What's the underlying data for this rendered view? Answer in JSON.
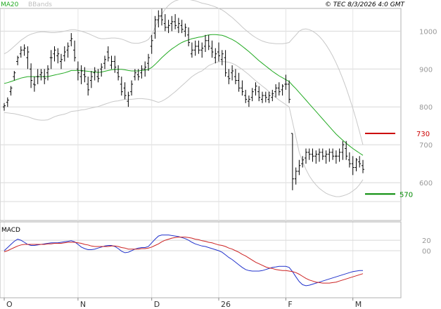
{
  "header": {
    "ma_label": "MA20",
    "bbands_label": "BBands",
    "copyright": "© TEC 8/3/2026 4:0 GMT"
  },
  "macd_label": "MACD",
  "colors": {
    "ma20": "#22aa22",
    "bbands": "#c8c8c8",
    "candles": "#000000",
    "macd_line": "#2233cc",
    "signal_line": "#cc2222",
    "resistance": "#cc0000",
    "support": "#008800",
    "grid": "#d8d8d8",
    "axis_text": "#999999"
  },
  "chart_data": [
    {
      "type": "candlestick",
      "title": "",
      "y_ticks": [
        "1000",
        "900",
        "800",
        "700",
        "600"
      ],
      "ylim": [
        500,
        1060
      ],
      "x_ticks": [
        "O",
        "N",
        "D",
        "26",
        "F",
        "M"
      ],
      "x_tick_index": [
        0,
        22,
        44,
        64,
        84,
        104
      ],
      "ohlc": [
        [
          800,
          810,
          790,
          803
        ],
        [
          812,
          825,
          800,
          818
        ],
        [
          840,
          855,
          830,
          850
        ],
        [
          880,
          895,
          870,
          890
        ],
        [
          920,
          935,
          910,
          930
        ],
        [
          940,
          960,
          930,
          950
        ],
        [
          950,
          965,
          935,
          955
        ],
        [
          930,
          960,
          900,
          945
        ],
        [
          900,
          915,
          850,
          870
        ],
        [
          860,
          880,
          840,
          858
        ],
        [
          880,
          900,
          860,
          880
        ],
        [
          885,
          900,
          870,
          890
        ],
        [
          880,
          900,
          860,
          875
        ],
        [
          890,
          910,
          870,
          900
        ],
        [
          930,
          950,
          900,
          930
        ],
        [
          940,
          960,
          920,
          950
        ],
        [
          935,
          955,
          915,
          940
        ],
        [
          920,
          940,
          900,
          925
        ],
        [
          935,
          960,
          920,
          945
        ],
        [
          950,
          970,
          930,
          960
        ],
        [
          975,
          995,
          960,
          980
        ],
        [
          950,
          975,
          920,
          930
        ],
        [
          900,
          920,
          870,
          890
        ],
        [
          880,
          910,
          860,
          895
        ],
        [
          885,
          905,
          865,
          880
        ],
        [
          860,
          880,
          830,
          845
        ],
        [
          870,
          895,
          850,
          880
        ],
        [
          890,
          905,
          870,
          895
        ],
        [
          880,
          900,
          865,
          875
        ],
        [
          900,
          915,
          880,
          905
        ],
        [
          915,
          935,
          900,
          925
        ],
        [
          945,
          960,
          920,
          930
        ],
        [
          910,
          935,
          900,
          920
        ],
        [
          920,
          935,
          890,
          905
        ],
        [
          890,
          910,
          870,
          880
        ],
        [
          860,
          880,
          830,
          840
        ],
        [
          850,
          865,
          820,
          830
        ],
        [
          815,
          840,
          800,
          830
        ],
        [
          840,
          870,
          830,
          860
        ],
        [
          880,
          900,
          870,
          890
        ],
        [
          885,
          900,
          870,
          880
        ],
        [
          890,
          910,
          875,
          900
        ],
        [
          900,
          920,
          880,
          905
        ],
        [
          915,
          940,
          895,
          930
        ],
        [
          960,
          990,
          940,
          975
        ],
        [
          995,
          1040,
          980,
          1030
        ],
        [
          1030,
          1055,
          1010,
          1040
        ],
        [
          1040,
          1060,
          1015,
          1030
        ],
        [
          1020,
          1045,
          1000,
          1010
        ],
        [
          1010,
          1030,
          995,
          1015
        ],
        [
          1020,
          1040,
          1000,
          1025
        ],
        [
          1025,
          1045,
          1005,
          1015
        ],
        [
          1010,
          1035,
          995,
          1020
        ],
        [
          1015,
          1030,
          995,
          1005
        ],
        [
          1000,
          1020,
          985,
          1010
        ],
        [
          990,
          1010,
          960,
          970
        ],
        [
          940,
          970,
          930,
          950
        ],
        [
          950,
          975,
          935,
          960
        ],
        [
          960,
          975,
          940,
          950
        ],
        [
          950,
          970,
          930,
          955
        ],
        [
          960,
          990,
          945,
          975
        ],
        [
          975,
          990,
          950,
          960
        ],
        [
          955,
          975,
          930,
          945
        ],
        [
          930,
          955,
          915,
          940
        ],
        [
          945,
          970,
          920,
          935
        ],
        [
          925,
          950,
          910,
          940
        ],
        [
          930,
          950,
          880,
          890
        ],
        [
          880,
          900,
          860,
          875
        ],
        [
          890,
          910,
          870,
          895
        ],
        [
          880,
          900,
          860,
          870
        ],
        [
          870,
          890,
          840,
          850
        ],
        [
          850,
          870,
          830,
          840
        ],
        [
          830,
          845,
          810,
          820
        ],
        [
          815,
          830,
          800,
          820
        ],
        [
          825,
          850,
          815,
          840
        ],
        [
          845,
          865,
          830,
          855
        ],
        [
          840,
          855,
          815,
          825
        ],
        [
          820,
          840,
          810,
          830
        ],
        [
          830,
          840,
          812,
          825
        ],
        [
          820,
          840,
          810,
          830
        ],
        [
          825,
          845,
          815,
          835
        ],
        [
          840,
          860,
          825,
          850
        ],
        [
          850,
          865,
          830,
          840
        ],
        [
          845,
          860,
          830,
          855
        ],
        [
          860,
          885,
          845,
          860
        ],
        [
          860,
          870,
          810,
          820
        ],
        [
          730,
          730,
          580,
          610
        ],
        [
          610,
          640,
          595,
          630
        ],
        [
          630,
          660,
          620,
          645
        ],
        [
          650,
          670,
          640,
          660
        ],
        [
          665,
          690,
          650,
          680
        ],
        [
          680,
          690,
          660,
          675
        ],
        [
          675,
          690,
          655,
          670
        ],
        [
          670,
          685,
          650,
          675
        ],
        [
          675,
          690,
          655,
          680
        ],
        [
          680,
          690,
          660,
          670
        ],
        [
          670,
          685,
          650,
          675
        ],
        [
          675,
          690,
          655,
          680
        ],
        [
          680,
          690,
          660,
          670
        ],
        [
          670,
          685,
          650,
          670
        ],
        [
          670,
          690,
          655,
          680
        ],
        [
          680,
          710,
          660,
          700
        ],
        [
          690,
          710,
          660,
          670
        ],
        [
          660,
          680,
          640,
          650
        ],
        [
          650,
          670,
          620,
          640
        ],
        [
          640,
          665,
          630,
          660
        ],
        [
          655,
          670,
          640,
          650
        ],
        [
          645,
          660,
          625,
          635
        ]
      ],
      "ma20": [
        862,
        864,
        867,
        870,
        873,
        876,
        878,
        880,
        880,
        880,
        880,
        880,
        880,
        880,
        882,
        884,
        886,
        888,
        890,
        893,
        896,
        896,
        896,
        896,
        895,
        894,
        893,
        892,
        891,
        892,
        894,
        896,
        898,
        899,
        899,
        899,
        898,
        896,
        895,
        895,
        895,
        896,
        897,
        899,
        904,
        912,
        921,
        930,
        938,
        946,
        953,
        959,
        965,
        970,
        974,
        977,
        980,
        982,
        984,
        985,
        988,
        990,
        991,
        991,
        990,
        989,
        986,
        982,
        978,
        973,
        967,
        960,
        953,
        946,
        938,
        930,
        922,
        915,
        908,
        901,
        894,
        888,
        882,
        877,
        872,
        867,
        857,
        848,
        838,
        828,
        818,
        808,
        798,
        788,
        778,
        768,
        758,
        748,
        738,
        728,
        720,
        712,
        704,
        697,
        690,
        684,
        678,
        672
      ],
      "bb_upper": [
        940,
        945,
        952,
        960,
        968,
        976,
        982,
        988,
        992,
        995,
        997,
        998,
        998,
        997,
        996,
        996,
        997,
        998,
        1000,
        1002,
        1004,
        1004,
        1002,
        1000,
        997,
        994,
        990,
        986,
        982,
        980,
        980,
        981,
        982,
        982,
        981,
        979,
        976,
        972,
        969,
        968,
        968,
        970,
        973,
        978,
        990,
        1010,
        1030,
        1045,
        1058,
        1068,
        1075,
        1080,
        1083,
        1085,
        1085,
        1084,
        1082,
        1080,
        1077,
        1074,
        1072,
        1070,
        1067,
        1064,
        1060,
        1056,
        1050,
        1043,
        1036,
        1028,
        1020,
        1011,
        1003,
        996,
        989,
        983,
        978,
        974,
        971,
        969,
        968,
        967,
        967,
        967,
        968,
        970,
        980,
        990,
        1000,
        1005,
        1006,
        1004,
        1000,
        994,
        986,
        976,
        964,
        950,
        934,
        916,
        896,
        874,
        850,
        824,
        796,
        766,
        734,
        700
      ],
      "bb_lower": [
        785,
        784,
        783,
        782,
        780,
        778,
        776,
        774,
        771,
        768,
        766,
        765,
        765,
        766,
        770,
        774,
        777,
        779,
        781,
        784,
        788,
        789,
        790,
        792,
        793,
        795,
        797,
        799,
        801,
        804,
        807,
        810,
        813,
        815,
        816,
        818,
        820,
        820,
        820,
        821,
        822,
        822,
        821,
        820,
        818,
        815,
        812,
        815,
        820,
        826,
        833,
        840,
        848,
        856,
        864,
        872,
        880,
        886,
        891,
        895,
        902,
        909,
        913,
        917,
        919,
        920,
        919,
        918,
        915,
        911,
        905,
        899,
        892,
        885,
        877,
        869,
        862,
        855,
        848,
        840,
        832,
        825,
        818,
        812,
        806,
        800,
        760,
        720,
        680,
        655,
        635,
        618,
        605,
        594,
        585,
        578,
        572,
        568,
        565,
        563,
        563,
        565,
        568,
        572,
        578,
        585,
        595,
        608
      ],
      "resistance": {
        "value": 730,
        "label": "730"
      },
      "support": {
        "value": 570,
        "label": "570"
      }
    },
    {
      "type": "line",
      "title": "MACD",
      "y_ticks": [
        "20",
        "00"
      ],
      "y_tick_values": [
        20,
        0
      ],
      "ylim": [
        -90,
        55
      ],
      "series": [
        {
          "values": [
            0,
            6,
            12,
            18,
            22,
            20,
            16,
            12,
            10,
            10,
            11,
            12,
            13,
            14,
            15,
            15,
            15,
            16,
            17,
            18,
            19,
            17,
            12,
            7,
            4,
            2,
            2,
            3,
            5,
            7,
            9,
            10,
            10,
            8,
            4,
            -1,
            -4,
            -3,
            0,
            3,
            5,
            6,
            6,
            8,
            15,
            22,
            28,
            30,
            30,
            30,
            29,
            28,
            27,
            25,
            23,
            20,
            16,
            13,
            11,
            9,
            8,
            6,
            4,
            2,
            0,
            -3,
            -8,
            -13,
            -17,
            -22,
            -27,
            -32,
            -36,
            -38,
            -39,
            -39,
            -39,
            -38,
            -36,
            -34,
            -32,
            -31,
            -30,
            -30,
            -30,
            -32,
            -40,
            -50,
            -59,
            -65,
            -67,
            -66,
            -64,
            -62,
            -60,
            -58,
            -56,
            -54,
            -52,
            -50,
            -48,
            -46,
            -44,
            -42,
            -40,
            -39,
            -38,
            -38
          ]
        },
        {
          "values": [
            -2,
            0,
            3,
            6,
            9,
            11,
            12,
            12,
            12,
            12,
            12,
            12,
            12,
            13,
            13,
            14,
            14,
            14,
            15,
            16,
            16,
            16,
            15,
            14,
            12,
            11,
            9,
            8,
            8,
            8,
            8,
            8,
            9,
            9,
            8,
            6,
            5,
            3,
            3,
            3,
            3,
            4,
            4,
            5,
            7,
            10,
            13,
            17,
            20,
            22,
            24,
            25,
            26,
            26,
            26,
            25,
            24,
            22,
            21,
            19,
            18,
            16,
            15,
            13,
            11,
            10,
            8,
            5,
            3,
            0,
            -3,
            -7,
            -10,
            -14,
            -18,
            -22,
            -25,
            -28,
            -31,
            -33,
            -34,
            -36,
            -37,
            -38,
            -38,
            -39,
            -40,
            -42,
            -45,
            -49,
            -53,
            -56,
            -58,
            -60,
            -61,
            -62,
            -62,
            -62,
            -61,
            -60,
            -58,
            -56,
            -54,
            -52,
            -50,
            -48,
            -46,
            -44
          ]
        }
      ]
    }
  ]
}
